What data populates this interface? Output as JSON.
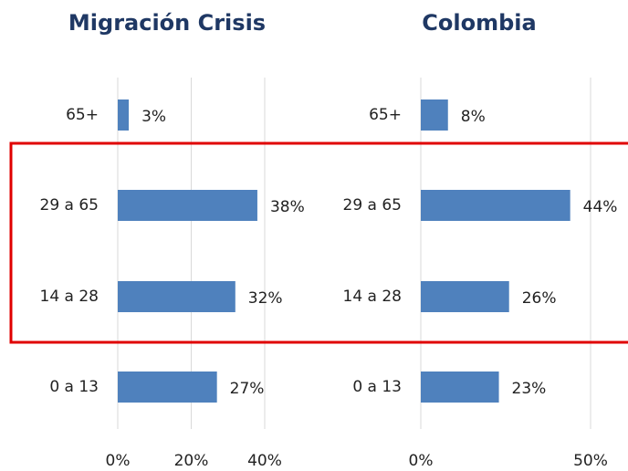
{
  "chart_data": [
    {
      "type": "hbar",
      "title": "Migración Crisis",
      "categories": [
        "65+",
        "29 a 65",
        "14 a 28",
        "0 a 13"
      ],
      "values": [
        3,
        38,
        32,
        27
      ],
      "value_labels": [
        "3%",
        "38%",
        "32%",
        "27%"
      ],
      "color": "#4f81bd",
      "xlim": [
        0,
        40
      ],
      "xticks": [
        {
          "value": 0,
          "label": "0%"
        },
        {
          "value": 20,
          "label": "20%"
        },
        {
          "value": 40,
          "label": "40%"
        }
      ],
      "grid": true
    },
    {
      "type": "hbar",
      "title": "Colombia",
      "categories": [
        "65+",
        "29 a 65",
        "14 a 28",
        "0 a 13"
      ],
      "values": [
        8,
        44,
        26,
        23
      ],
      "value_labels": [
        "8%",
        "44%",
        "26%",
        "23%"
      ],
      "color": "#4f81bd",
      "xlim": [
        0,
        50
      ],
      "xticks": [
        {
          "value": 0,
          "label": "0%"
        },
        {
          "value": 50,
          "label": "50%"
        }
      ],
      "grid": true
    }
  ]
}
